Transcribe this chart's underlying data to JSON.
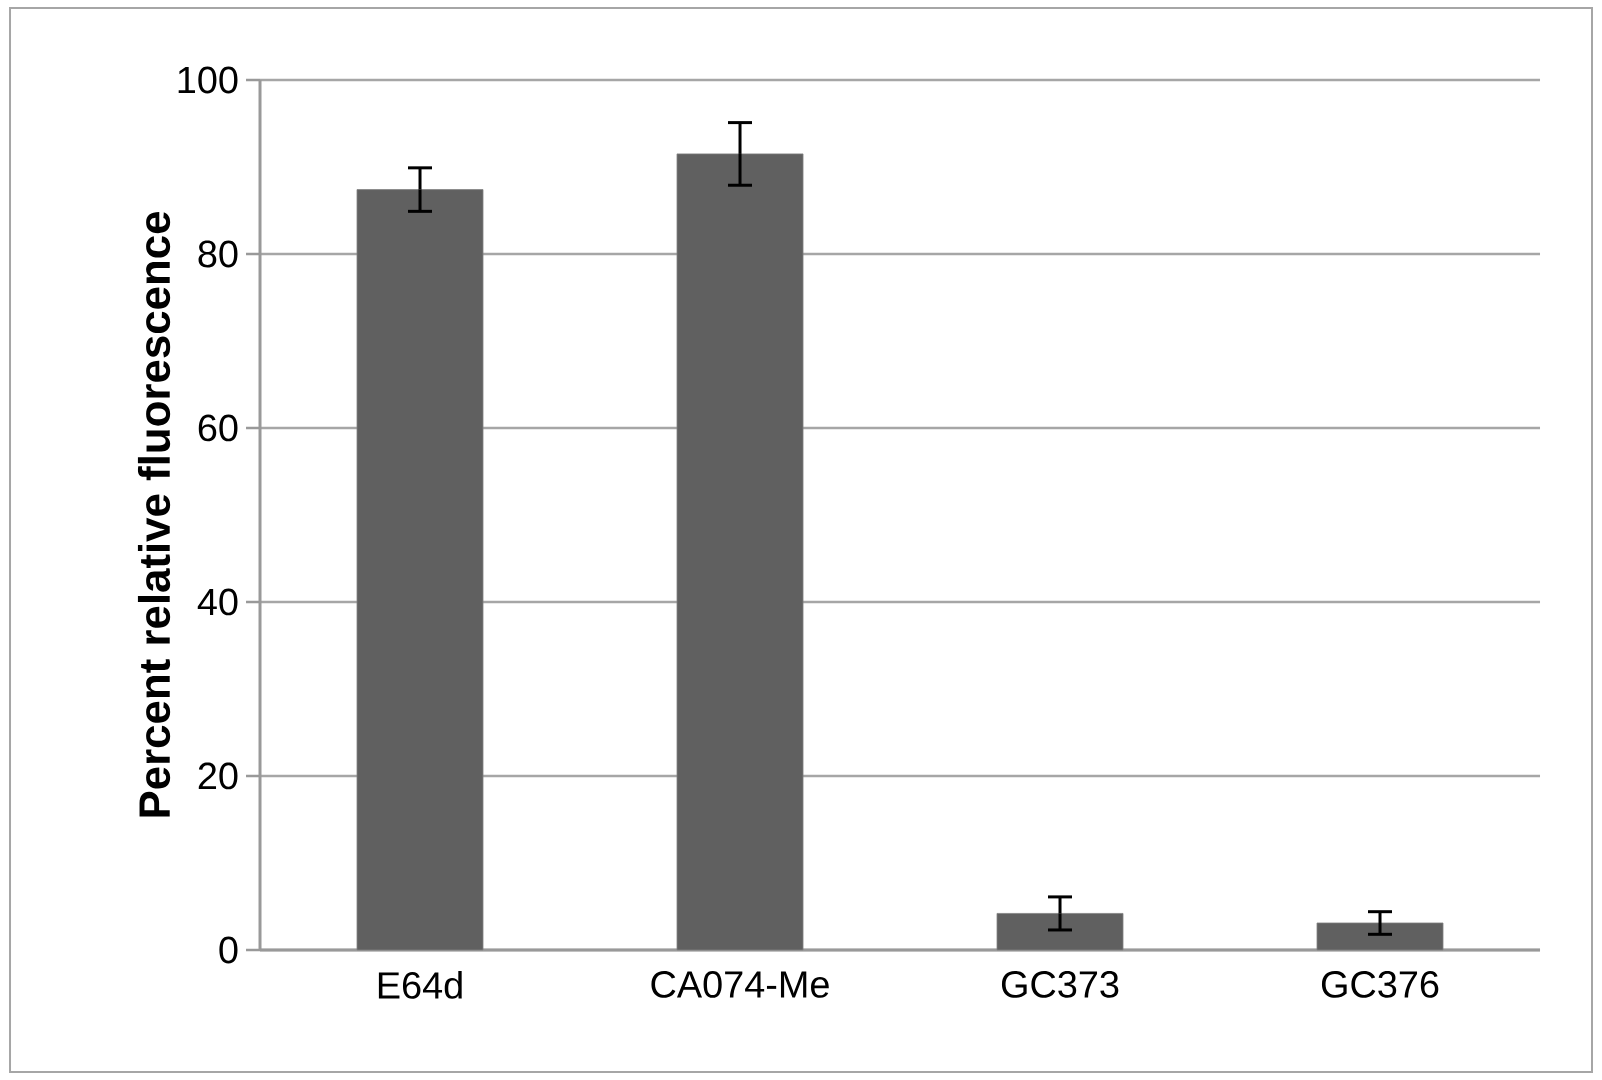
{
  "chart_data": {
    "type": "bar",
    "ylabel": "Percent relative fluorescence",
    "categories": [
      "E64d",
      "CA074-Me",
      "GC373",
      "GC376"
    ],
    "values": [
      87.4,
      91.5,
      4.2,
      3.1
    ],
    "errors": [
      2.5,
      3.6,
      1.9,
      1.3
    ],
    "color": "#606060",
    "ylim": [
      0,
      100
    ],
    "yticks": [
      0,
      20,
      40,
      60,
      80,
      100
    ],
    "grid": "y"
  }
}
